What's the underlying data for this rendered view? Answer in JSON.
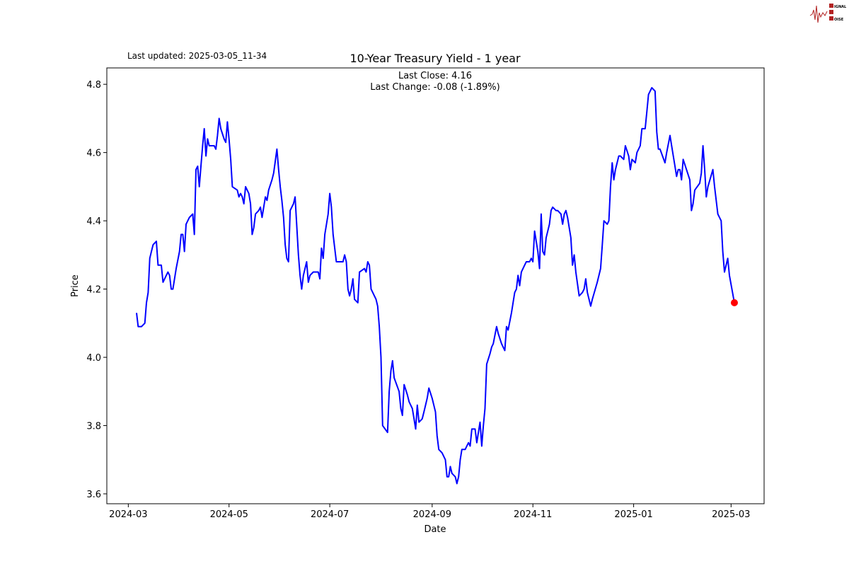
{
  "chart_data": {
    "type": "line",
    "title": "10-Year Treasury Yield - 1 year",
    "last_updated": "Last updated: 2025-03-05_11-34",
    "annotation_lines": [
      "Last Close: 4.16",
      "Last Change: -0.08 (-1.89%)"
    ],
    "xlabel": "Date",
    "ylabel": "Price",
    "xlim": [
      "2024-02-17",
      "2025-03-21"
    ],
    "ylim": [
      3.571,
      4.848
    ],
    "xticks": [
      "2024-03",
      "2024-05",
      "2024-07",
      "2024-09",
      "2024-11",
      "2025-01",
      "2025-03"
    ],
    "yticks": [
      3.6,
      3.8,
      4.0,
      4.2,
      4.4,
      4.6,
      4.8
    ],
    "ytick_labels": [
      "3.6",
      "3.8",
      "4.0",
      "4.2",
      "4.4",
      "4.6",
      "4.8"
    ],
    "grid": false,
    "line_color": "#0000ff",
    "last_point_color": "#ff0000",
    "logo_text": "SIGNAL 2 NOISE",
    "series": [
      {
        "dates": [
          "2024-03-06",
          "2024-03-07",
          "2024-03-09",
          "2024-03-11",
          "2024-03-12",
          "2024-03-13",
          "2024-03-14",
          "2024-03-15",
          "2024-03-16",
          "2024-03-18",
          "2024-03-19",
          "2024-03-21",
          "2024-03-22",
          "2024-03-24",
          "2024-03-25",
          "2024-03-26",
          "2024-03-27",
          "2024-03-28",
          "2024-03-30",
          "2024-04-01",
          "2024-04-02",
          "2024-04-03",
          "2024-04-04",
          "2024-04-05",
          "2024-04-07",
          "2024-04-09",
          "2024-04-10",
          "2024-04-11",
          "2024-04-12",
          "2024-04-13",
          "2024-04-14",
          "2024-04-15",
          "2024-04-16",
          "2024-04-17",
          "2024-04-18",
          "2024-04-19",
          "2024-04-21",
          "2024-04-22",
          "2024-04-23",
          "2024-04-24",
          "2024-04-25",
          "2024-04-26",
          "2024-04-28",
          "2024-04-29",
          "2024-04-30",
          "2024-05-01",
          "2024-05-02",
          "2024-05-03",
          "2024-05-06",
          "2024-05-07",
          "2024-05-08",
          "2024-05-09",
          "2024-05-10",
          "2024-05-11",
          "2024-05-12",
          "2024-05-13",
          "2024-05-14",
          "2024-05-15",
          "2024-05-16",
          "2024-05-17",
          "2024-05-19",
          "2024-05-20",
          "2024-05-21",
          "2024-05-23",
          "2024-05-24",
          "2024-05-25",
          "2024-05-27",
          "2024-05-28",
          "2024-05-30",
          "2024-05-31",
          "2024-06-01",
          "2024-06-02",
          "2024-06-03",
          "2024-06-04",
          "2024-06-05",
          "2024-06-06",
          "2024-06-07",
          "2024-06-09",
          "2024-06-10",
          "2024-06-12",
          "2024-06-13",
          "2024-06-14",
          "2024-06-15",
          "2024-06-17",
          "2024-06-18",
          "2024-06-19",
          "2024-06-21",
          "2024-06-24",
          "2024-06-25",
          "2024-06-26",
          "2024-06-27",
          "2024-06-28",
          "2024-06-30",
          "2024-07-01",
          "2024-07-02",
          "2024-07-03",
          "2024-07-05",
          "2024-07-09",
          "2024-07-10",
          "2024-07-11",
          "2024-07-12",
          "2024-07-13",
          "2024-07-14",
          "2024-07-15",
          "2024-07-16",
          "2024-07-18",
          "2024-07-19",
          "2024-07-22",
          "2024-07-23",
          "2024-07-24",
          "2024-07-25",
          "2024-07-26",
          "2024-07-29",
          "2024-07-30",
          "2024-07-31",
          "2024-08-01",
          "2024-08-02",
          "2024-08-05",
          "2024-08-06",
          "2024-08-07",
          "2024-08-08",
          "2024-08-09",
          "2024-08-12",
          "2024-08-13",
          "2024-08-14",
          "2024-08-15",
          "2024-08-17",
          "2024-08-18",
          "2024-08-20",
          "2024-08-21",
          "2024-08-22",
          "2024-08-23",
          "2024-08-24",
          "2024-08-26",
          "2024-08-27",
          "2024-08-29",
          "2024-08-30",
          "2024-09-01",
          "2024-09-03",
          "2024-09-04",
          "2024-09-05",
          "2024-09-07",
          "2024-09-09",
          "2024-09-10",
          "2024-09-11",
          "2024-09-12",
          "2024-09-13",
          "2024-09-15",
          "2024-09-16",
          "2024-09-17",
          "2024-09-18",
          "2024-09-19",
          "2024-09-21",
          "2024-09-22",
          "2024-09-23",
          "2024-09-24",
          "2024-09-25",
          "2024-09-27",
          "2024-09-28",
          "2024-09-29",
          "2024-09-30",
          "2024-10-01",
          "2024-10-02",
          "2024-10-03",
          "2024-10-04",
          "2024-10-06",
          "2024-10-07",
          "2024-10-08",
          "2024-10-10",
          "2024-10-11",
          "2024-10-13",
          "2024-10-15",
          "2024-10-16",
          "2024-10-17",
          "2024-10-19",
          "2024-10-21",
          "2024-10-22",
          "2024-10-23",
          "2024-10-24",
          "2024-10-25",
          "2024-10-27",
          "2024-10-28",
          "2024-10-30",
          "2024-10-31",
          "2024-11-01",
          "2024-11-02",
          "2024-11-03",
          "2024-11-04",
          "2024-11-05",
          "2024-11-06",
          "2024-11-07",
          "2024-11-08",
          "2024-11-09",
          "2024-11-11",
          "2024-11-12",
          "2024-11-13",
          "2024-11-15",
          "2024-11-16",
          "2024-11-18",
          "2024-11-19",
          "2024-11-20",
          "2024-11-21",
          "2024-11-22",
          "2024-11-24",
          "2024-11-25",
          "2024-11-26",
          "2024-11-27",
          "2024-11-29",
          "2024-12-01",
          "2024-12-02",
          "2024-12-03",
          "2024-12-04",
          "2024-12-06",
          "2024-12-07",
          "2024-12-10",
          "2024-12-12",
          "2024-12-13",
          "2024-12-14",
          "2024-12-16",
          "2024-12-17",
          "2024-12-18",
          "2024-12-19",
          "2024-12-20",
          "2024-12-21",
          "2024-12-23",
          "2024-12-24",
          "2024-12-26",
          "2024-12-27",
          "2024-12-29",
          "2024-12-30",
          "2024-12-31",
          "2025-01-02",
          "2025-01-03",
          "2025-01-05",
          "2025-01-06",
          "2025-01-08",
          "2025-01-09",
          "2025-01-10",
          "2025-01-12",
          "2025-01-14",
          "2025-01-15",
          "2025-01-16",
          "2025-01-17",
          "2025-01-20",
          "2025-01-21",
          "2025-01-23",
          "2025-01-24",
          "2025-01-26",
          "2025-01-27",
          "2025-01-28",
          "2025-01-29",
          "2025-01-30",
          "2025-01-31",
          "2025-02-02",
          "2025-02-04",
          "2025-02-05",
          "2025-02-06",
          "2025-02-07",
          "2025-02-10",
          "2025-02-11",
          "2025-02-12",
          "2025-02-13",
          "2025-02-14",
          "2025-02-15",
          "2025-02-18",
          "2025-02-19",
          "2025-02-21",
          "2025-02-23",
          "2025-02-24",
          "2025-02-25",
          "2025-02-27",
          "2025-02-28",
          "2025-03-03"
        ],
        "values": [
          4.13,
          4.09,
          4.09,
          4.1,
          4.16,
          4.19,
          4.29,
          4.31,
          4.33,
          4.34,
          4.27,
          4.27,
          4.22,
          4.24,
          4.25,
          4.24,
          4.2,
          4.2,
          4.26,
          4.31,
          4.36,
          4.36,
          4.31,
          4.39,
          4.41,
          4.42,
          4.36,
          4.55,
          4.56,
          4.5,
          4.56,
          4.62,
          4.67,
          4.59,
          4.64,
          4.62,
          4.62,
          4.62,
          4.61,
          4.65,
          4.7,
          4.67,
          4.64,
          4.63,
          4.69,
          4.64,
          4.58,
          4.5,
          4.49,
          4.47,
          4.48,
          4.47,
          4.45,
          4.5,
          4.49,
          4.48,
          4.45,
          4.36,
          4.38,
          4.42,
          4.43,
          4.44,
          4.41,
          4.47,
          4.46,
          4.49,
          4.52,
          4.54,
          4.61,
          4.55,
          4.5,
          4.46,
          4.41,
          4.33,
          4.29,
          4.28,
          4.43,
          4.45,
          4.47,
          4.3,
          4.24,
          4.2,
          4.24,
          4.28,
          4.22,
          4.24,
          4.25,
          4.25,
          4.23,
          4.32,
          4.29,
          4.36,
          4.42,
          4.48,
          4.44,
          4.36,
          4.28,
          4.28,
          4.3,
          4.28,
          4.2,
          4.18,
          4.2,
          4.23,
          4.17,
          4.16,
          4.25,
          4.26,
          4.25,
          4.28,
          4.27,
          4.2,
          4.17,
          4.15,
          4.09,
          4.0,
          3.8,
          3.78,
          3.9,
          3.96,
          3.99,
          3.94,
          3.9,
          3.85,
          3.83,
          3.92,
          3.89,
          3.87,
          3.85,
          3.82,
          3.79,
          3.86,
          3.81,
          3.82,
          3.84,
          3.88,
          3.91,
          3.88,
          3.84,
          3.77,
          3.73,
          3.72,
          3.7,
          3.65,
          3.65,
          3.68,
          3.66,
          3.65,
          3.63,
          3.65,
          3.7,
          3.73,
          3.73,
          3.74,
          3.75,
          3.74,
          3.79,
          3.79,
          3.75,
          3.78,
          3.81,
          3.74,
          3.8,
          3.85,
          3.98,
          4.01,
          4.03,
          4.04,
          4.09,
          4.07,
          4.04,
          4.02,
          4.09,
          4.08,
          4.13,
          4.19,
          4.2,
          4.24,
          4.21,
          4.25,
          4.27,
          4.28,
          4.28,
          4.29,
          4.28,
          4.37,
          4.34,
          4.31,
          4.26,
          4.42,
          4.31,
          4.3,
          4.35,
          4.39,
          4.43,
          4.44,
          4.43,
          4.43,
          4.42,
          4.39,
          4.42,
          4.43,
          4.41,
          4.35,
          4.27,
          4.3,
          4.25,
          4.18,
          4.19,
          4.2,
          4.23,
          4.19,
          4.15,
          4.17,
          4.22,
          4.26,
          4.33,
          4.4,
          4.39,
          4.4,
          4.5,
          4.57,
          4.52,
          4.55,
          4.59,
          4.59,
          4.58,
          4.62,
          4.59,
          4.55,
          4.58,
          4.57,
          4.6,
          4.62,
          4.67,
          4.67,
          4.72,
          4.77,
          4.79,
          4.78,
          4.66,
          4.61,
          4.61,
          4.57,
          4.6,
          4.65,
          4.62,
          4.56,
          4.53,
          4.55,
          4.55,
          4.52,
          4.58,
          4.55,
          4.52,
          4.43,
          4.45,
          4.49,
          4.51,
          4.54,
          4.62,
          4.55,
          4.47,
          4.5,
          4.55,
          4.5,
          4.42,
          4.4,
          4.31,
          4.25,
          4.29,
          4.24,
          4.16
        ]
      }
    ]
  }
}
